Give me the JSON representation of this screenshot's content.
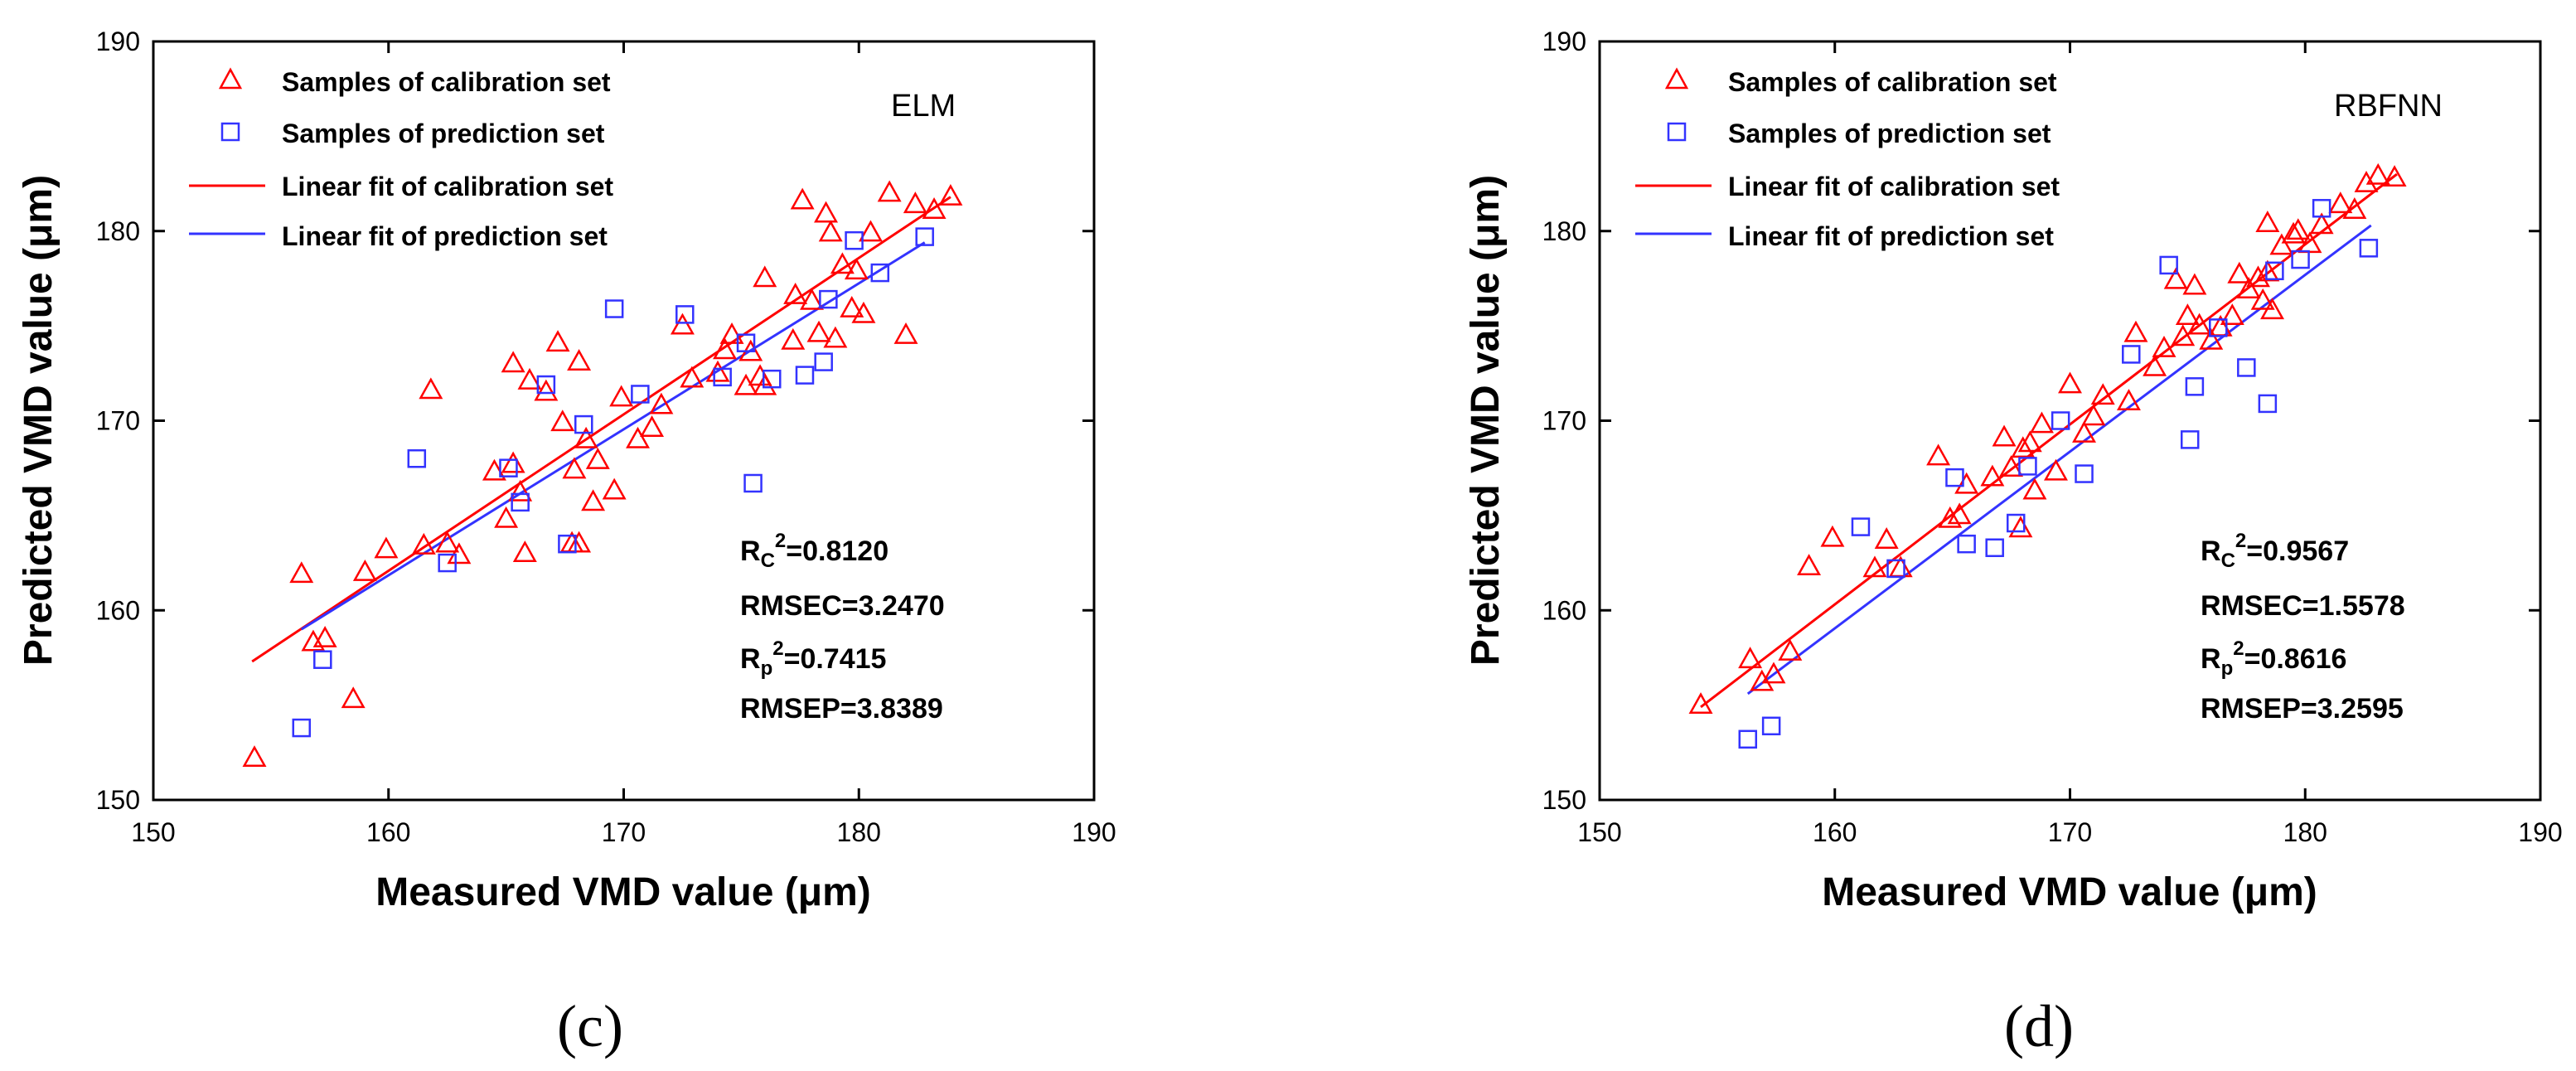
{
  "legend": {
    "calibration_samples": "Samples of calibration set",
    "prediction_samples": "Samples of prediction set",
    "calibration_fit": "Linear fit of calibration set",
    "prediction_fit": "Linear fit of prediction set"
  },
  "colors": {
    "calibration": "#ff0000",
    "prediction": "#3333ff"
  },
  "chart_data": [
    {
      "type": "scatter",
      "panel_label": "(c)",
      "model": "ELM",
      "xlabel": "Measured VMD value (μm)",
      "ylabel": "Predicted VMD value (μm)",
      "xlim": [
        150,
        190
      ],
      "ylim": [
        150,
        190
      ],
      "xticks": [
        "150",
        "160",
        "170",
        "180",
        "190"
      ],
      "yticks": [
        "150",
        "160",
        "170",
        "180",
        "190"
      ],
      "stats": {
        "rc_label": "R",
        "rc_sub": "C",
        "rc_sup": "2",
        "rc_value": "=0.8120",
        "rmsec": "RMSEC=3.2470",
        "rp_label": "R",
        "rp_sub": "p",
        "rp_sup": "2",
        "rp_value": "=0.7415",
        "rmsep": "RMSEP=3.8389"
      },
      "calibration": [
        [
          154.3,
          152.2
        ],
        [
          156.3,
          161.9
        ],
        [
          156.8,
          158.3
        ],
        [
          157.3,
          158.5
        ],
        [
          158.5,
          155.3
        ],
        [
          159.0,
          162.0
        ],
        [
          159.9,
          163.2
        ],
        [
          161.5,
          163.4
        ],
        [
          161.8,
          171.6
        ],
        [
          162.5,
          163.5
        ],
        [
          163.0,
          162.9
        ],
        [
          164.5,
          167.3
        ],
        [
          165.0,
          164.8
        ],
        [
          165.3,
          167.7
        ],
        [
          165.3,
          173.0
        ],
        [
          165.6,
          166.2
        ],
        [
          165.8,
          163.0
        ],
        [
          166.0,
          172.1
        ],
        [
          166.7,
          171.5
        ],
        [
          167.2,
          174.1
        ],
        [
          167.4,
          169.9
        ],
        [
          167.8,
          163.5
        ],
        [
          168.1,
          163.5
        ],
        [
          167.9,
          167.4
        ],
        [
          168.1,
          173.1
        ],
        [
          168.4,
          169.0
        ],
        [
          168.7,
          165.7
        ],
        [
          168.9,
          167.9
        ],
        [
          169.6,
          166.3
        ],
        [
          169.9,
          171.2
        ],
        [
          170.6,
          169.0
        ],
        [
          171.2,
          169.6
        ],
        [
          171.6,
          170.8
        ],
        [
          172.5,
          175.0
        ],
        [
          172.9,
          172.2
        ],
        [
          174.0,
          172.5
        ],
        [
          174.3,
          173.7
        ],
        [
          174.6,
          174.5
        ],
        [
          175.2,
          171.8
        ],
        [
          175.4,
          173.6
        ],
        [
          175.8,
          172.3
        ],
        [
          176.0,
          171.8
        ],
        [
          176.0,
          177.5
        ],
        [
          177.2,
          174.2
        ],
        [
          177.3,
          176.6
        ],
        [
          177.6,
          181.6
        ],
        [
          178.0,
          176.3
        ],
        [
          178.3,
          174.6
        ],
        [
          178.6,
          180.9
        ],
        [
          178.8,
          179.9
        ],
        [
          179.0,
          174.3
        ],
        [
          179.3,
          178.2
        ],
        [
          179.7,
          175.9
        ],
        [
          179.9,
          177.9
        ],
        [
          180.2,
          175.6
        ],
        [
          180.5,
          179.9
        ],
        [
          181.3,
          182.0
        ],
        [
          182.0,
          174.5
        ],
        [
          182.4,
          181.4
        ],
        [
          183.2,
          181.1
        ],
        [
          183.9,
          181.8
        ]
      ],
      "prediction": [
        [
          156.3,
          153.8
        ],
        [
          157.2,
          157.4
        ],
        [
          161.2,
          168.0
        ],
        [
          162.5,
          162.5
        ],
        [
          165.1,
          167.5
        ],
        [
          165.6,
          165.7
        ],
        [
          166.7,
          171.9
        ],
        [
          167.6,
          163.5
        ],
        [
          168.3,
          169.8
        ],
        [
          169.6,
          175.9
        ],
        [
          170.7,
          171.4
        ],
        [
          172.6,
          175.6
        ],
        [
          174.2,
          172.3
        ],
        [
          175.2,
          174.1
        ],
        [
          175.5,
          166.7
        ],
        [
          176.3,
          172.2
        ],
        [
          177.7,
          172.4
        ],
        [
          178.5,
          173.1
        ],
        [
          178.7,
          176.4
        ],
        [
          179.8,
          179.5
        ],
        [
          180.9,
          177.8
        ],
        [
          182.8,
          179.7
        ]
      ],
      "calibration_fit": [
        [
          154.2,
          157.3
        ],
        [
          183.9,
          181.8
        ]
      ],
      "prediction_fit": [
        [
          156.3,
          159.0
        ],
        [
          182.8,
          179.4
        ]
      ]
    },
    {
      "type": "scatter",
      "panel_label": "(d)",
      "model": "RBFNN",
      "xlabel": "Measured VMD value (μm)",
      "ylabel": "Predicted VMD value (μm)",
      "xlim": [
        150,
        190
      ],
      "ylim": [
        150,
        190
      ],
      "xticks": [
        "150",
        "160",
        "170",
        "180",
        "190"
      ],
      "yticks": [
        "150",
        "160",
        "170",
        "180",
        "190"
      ],
      "stats": {
        "rc_label": "R",
        "rc_sub": "C",
        "rc_sup": "2",
        "rc_value": "=0.9567",
        "rmsec": "RMSEC=1.5578",
        "rp_label": "R",
        "rp_sub": "p",
        "rp_sup": "2",
        "rp_value": "=0.8616",
        "rmsep": "RMSEP=3.2595"
      },
      "calibration": [
        [
          154.3,
          155.0
        ],
        [
          156.4,
          157.4
        ],
        [
          156.9,
          156.2
        ],
        [
          157.4,
          156.6
        ],
        [
          158.1,
          157.8
        ],
        [
          158.9,
          162.3
        ],
        [
          159.9,
          163.8
        ],
        [
          161.7,
          162.2
        ],
        [
          162.2,
          163.7
        ],
        [
          162.8,
          162.2
        ],
        [
          164.4,
          168.1
        ],
        [
          164.9,
          164.8
        ],
        [
          165.3,
          165.0
        ],
        [
          165.6,
          166.6
        ],
        [
          166.7,
          167.0
        ],
        [
          167.2,
          169.1
        ],
        [
          167.5,
          167.5
        ],
        [
          167.9,
          164.3
        ],
        [
          168.0,
          168.5
        ],
        [
          168.3,
          168.8
        ],
        [
          168.5,
          166.3
        ],
        [
          168.8,
          169.8
        ],
        [
          169.4,
          167.3
        ],
        [
          170.0,
          171.9
        ],
        [
          170.6,
          169.3
        ],
        [
          171.0,
          170.2
        ],
        [
          171.4,
          171.3
        ],
        [
          172.5,
          171.0
        ],
        [
          172.8,
          174.6
        ],
        [
          173.6,
          172.8
        ],
        [
          174.0,
          173.8
        ],
        [
          174.5,
          177.4
        ],
        [
          174.8,
          174.4
        ],
        [
          175.0,
          175.5
        ],
        [
          175.3,
          177.1
        ],
        [
          175.5,
          175.0
        ],
        [
          176.0,
          174.2
        ],
        [
          176.4,
          174.9
        ],
        [
          176.9,
          175.5
        ],
        [
          177.2,
          177.7
        ],
        [
          177.6,
          176.9
        ],
        [
          178.0,
          177.5
        ],
        [
          178.2,
          176.3
        ],
        [
          178.4,
          177.8
        ],
        [
          178.4,
          180.4
        ],
        [
          178.6,
          175.8
        ],
        [
          179.0,
          179.2
        ],
        [
          179.5,
          179.8
        ],
        [
          179.7,
          180.0
        ],
        [
          180.2,
          179.3
        ],
        [
          180.7,
          180.3
        ],
        [
          181.5,
          181.4
        ],
        [
          182.1,
          181.1
        ],
        [
          182.6,
          182.5
        ],
        [
          183.1,
          182.9
        ],
        [
          183.8,
          182.8
        ]
      ],
      "prediction": [
        [
          156.3,
          153.2
        ],
        [
          157.3,
          153.9
        ],
        [
          161.1,
          164.4
        ],
        [
          162.6,
          162.2
        ],
        [
          165.1,
          167.0
        ],
        [
          165.6,
          163.5
        ],
        [
          166.8,
          163.3
        ],
        [
          167.7,
          164.6
        ],
        [
          168.2,
          167.6
        ],
        [
          169.6,
          170.0
        ],
        [
          170.6,
          167.2
        ],
        [
          172.6,
          173.5
        ],
        [
          174.2,
          178.2
        ],
        [
          175.1,
          169.0
        ],
        [
          175.3,
          171.8
        ],
        [
          176.3,
          174.9
        ],
        [
          177.5,
          172.8
        ],
        [
          178.4,
          170.9
        ],
        [
          178.7,
          177.9
        ],
        [
          179.8,
          178.5
        ],
        [
          180.7,
          181.2
        ],
        [
          182.7,
          179.1
        ]
      ],
      "calibration_fit": [
        [
          154.3,
          154.9
        ],
        [
          183.9,
          183.0
        ]
      ],
      "prediction_fit": [
        [
          156.3,
          155.6
        ],
        [
          182.8,
          180.3
        ]
      ]
    }
  ]
}
